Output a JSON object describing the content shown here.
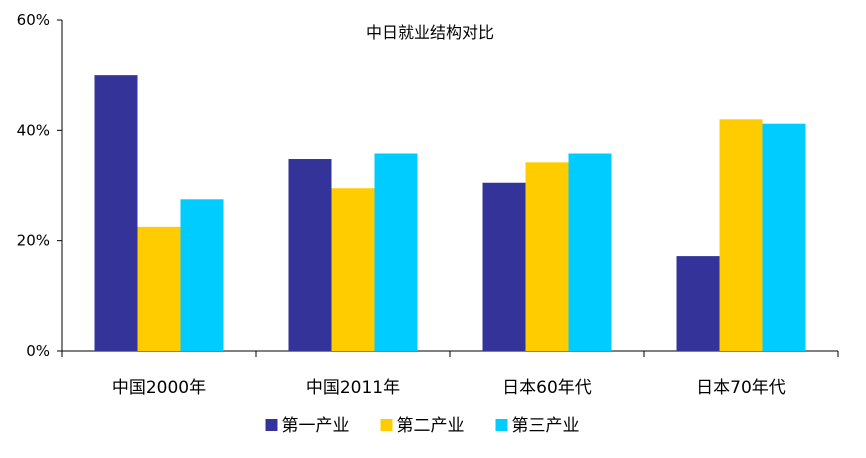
{
  "chart_data": {
    "type": "bar",
    "title": "中日就业结构对比",
    "xlabel": "",
    "ylabel": "",
    "categories": [
      "中国2000年",
      "中国2011年",
      "日本60年代",
      "日本70年代"
    ],
    "series": [
      {
        "name": "第一产业",
        "color": "#333399",
        "values": [
          50,
          34.8,
          30.5,
          17.2
        ]
      },
      {
        "name": "第二产业",
        "color": "#FFCC00",
        "values": [
          22.5,
          29.5,
          34.2,
          42
        ]
      },
      {
        "name": "第三产业",
        "color": "#00CCFF",
        "values": [
          27.5,
          35.8,
          35.8,
          41.2
        ]
      }
    ],
    "ylim": [
      0,
      60
    ],
    "yticks": [
      0,
      20,
      40,
      60
    ],
    "yticklabels": [
      "0%",
      "20%",
      "40%",
      "60%"
    ],
    "grid": false,
    "legend_position": "bottom"
  }
}
